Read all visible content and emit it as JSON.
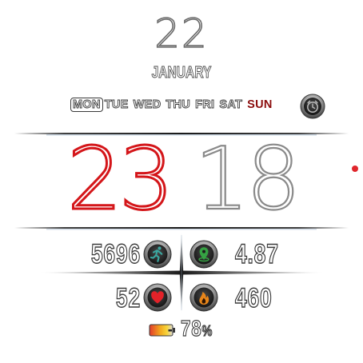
{
  "date": {
    "day": "22",
    "month": "JANUARY"
  },
  "weekdays": {
    "items": [
      "MON",
      "TUE",
      "WED",
      "THU",
      "FRI",
      "SAT",
      "SUN"
    ],
    "active": "MON"
  },
  "time": {
    "hours": "23",
    "minutes": "18"
  },
  "stats": {
    "steps": "5696",
    "distance": "4.87",
    "heart_rate": "52",
    "calories": "460"
  },
  "battery": {
    "value": "78",
    "unit": "%"
  },
  "colors": {
    "hours": "#d4161a",
    "sunday": "#8b0d0d",
    "seconds_dot": "#e0262c",
    "steps_icon": "#3aa7a0",
    "distance_icon": "#35a243",
    "heart_icon": "#e32229",
    "calories_icon": "#e8861a"
  },
  "icons": {
    "alarm": "alarm-clock-icon",
    "steps": "running-person-icon",
    "distance": "location-pin-icon",
    "heart": "heart-icon",
    "calories": "flame-icon",
    "battery": "battery-icon"
  }
}
